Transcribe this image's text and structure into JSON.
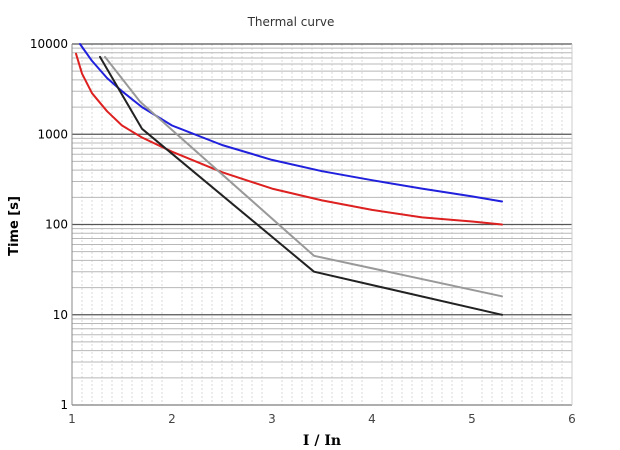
{
  "chart_data": {
    "type": "line",
    "title": "Thermal curve",
    "xlabel": "I / In",
    "ylabel": "Time [s]",
    "xlim": [
      1,
      6
    ],
    "ylim": [
      1,
      10000
    ],
    "yscale": "log",
    "grid": true,
    "legend": "none",
    "x_ticks": [
      "1",
      "2",
      "3",
      "4",
      "5",
      "6"
    ],
    "y_ticks": [
      "1",
      "10",
      "100",
      "1000",
      "10000"
    ],
    "series": [
      {
        "color": "#2020dd",
        "x": [
          1.08,
          1.2,
          1.35,
          1.5,
          1.7,
          2.0,
          2.5,
          3.0,
          3.5,
          4.0,
          4.5,
          5.0,
          5.3
        ],
        "y": [
          10000,
          6500,
          4200,
          3000,
          2000,
          1250,
          760,
          520,
          390,
          310,
          250,
          205,
          180
        ]
      },
      {
        "color": "#dd2020",
        "x": [
          1.04,
          1.1,
          1.2,
          1.35,
          1.5,
          1.7,
          2.0,
          2.5,
          3.0,
          3.5,
          4.0,
          4.5,
          5.0,
          5.3
        ],
        "y": [
          7800,
          4700,
          2850,
          1800,
          1250,
          920,
          640,
          380,
          250,
          185,
          145,
          120,
          108,
          100
        ]
      },
      {
        "color": "#222222",
        "x": [
          1.28,
          1.7,
          3.42,
          5.3
        ],
        "y": [
          7200,
          1150,
          30,
          10
        ]
      },
      {
        "color": "#999999",
        "x": [
          1.33,
          1.68,
          3.42,
          5.3
        ],
        "y": [
          7200,
          2300,
          45,
          16
        ]
      }
    ]
  }
}
